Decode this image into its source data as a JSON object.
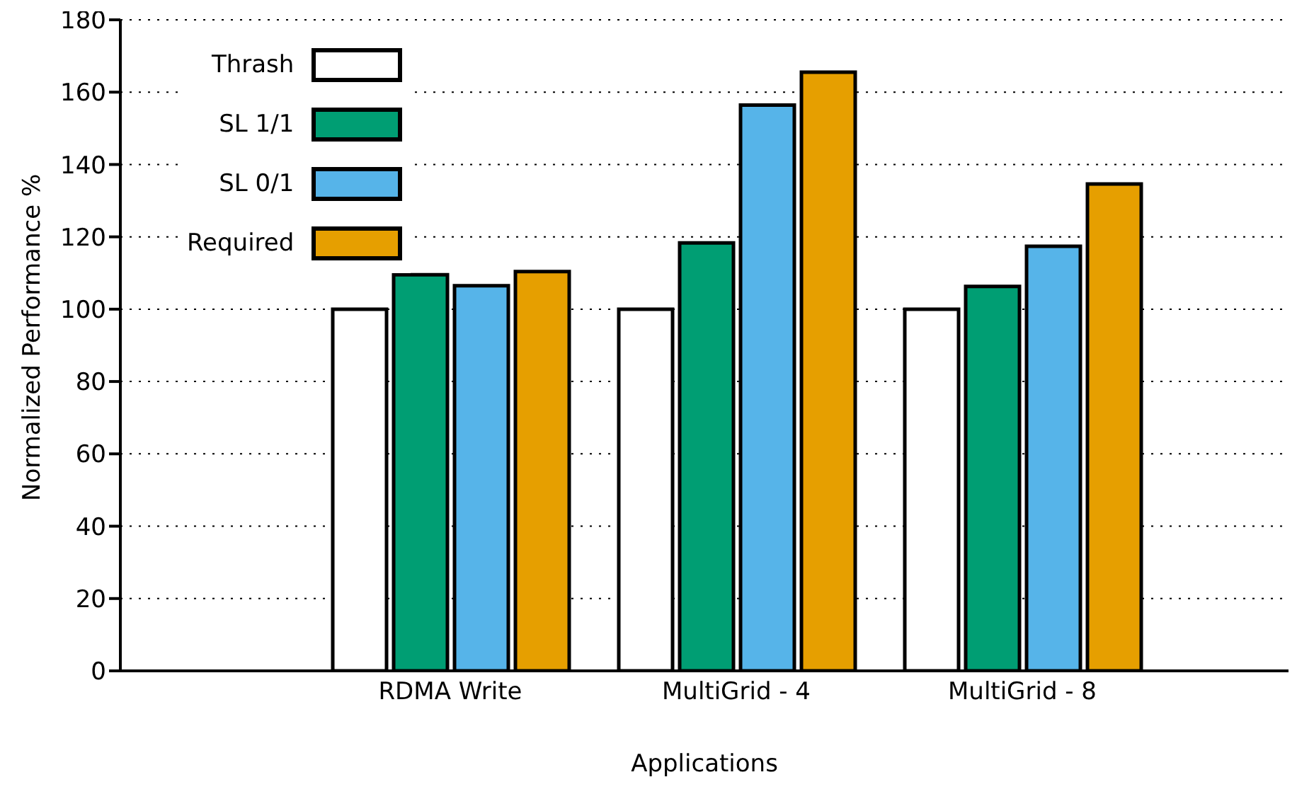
{
  "chart_data": {
    "type": "bar",
    "xlabel": "Applications",
    "ylabel": "Normalized Performance %",
    "categories": [
      "RDMA Write",
      "MultiGrid - 4",
      "MultiGrid - 8"
    ],
    "series": [
      {
        "name": "Thrash",
        "color": "#ffffff",
        "values": [
          100,
          100,
          100
        ]
      },
      {
        "name": "SL 1/1",
        "color": "#009e73",
        "values": [
          109.5,
          118.3,
          106.3
        ]
      },
      {
        "name": "SL 0/1",
        "color": "#56b4e9",
        "values": [
          106.5,
          156.4,
          117.4
        ]
      },
      {
        "name": "Required",
        "color": "#e69f00",
        "values": [
          110.4,
          165.5,
          134.6
        ]
      }
    ],
    "ylim": [
      0,
      180
    ],
    "yticks": [
      0,
      20,
      40,
      60,
      80,
      100,
      120,
      140,
      160,
      180
    ],
    "grid": "y",
    "legend": "top left"
  }
}
